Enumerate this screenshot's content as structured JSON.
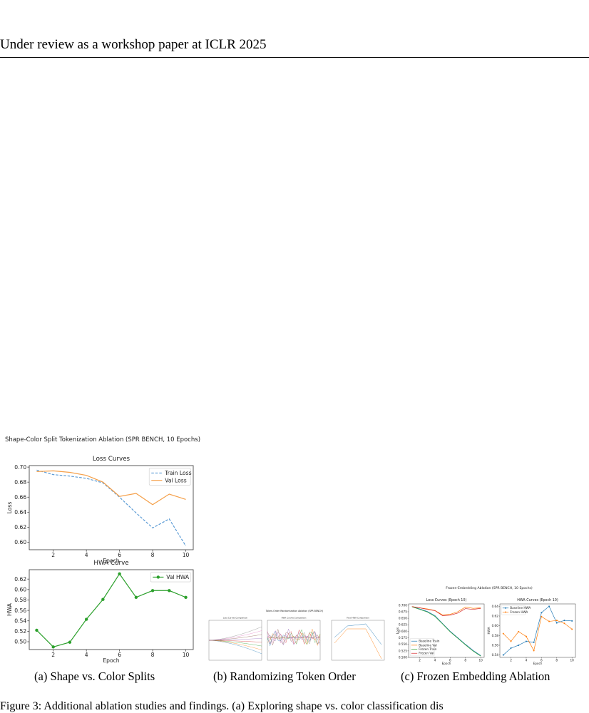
{
  "header": {
    "text": "Under review as a workshop paper at ICLR 2025"
  },
  "captions": {
    "a": "(a)  Shape vs. Color Splits",
    "b": "(b)  Randomizing Token Order",
    "c": "(c)  Frozen Embedding Ablation"
  },
  "footer": {
    "text": "Figure 3:  Additional ablation studies and findings. (a) Exploring shape vs. color classification dis"
  },
  "chart_data": [
    {
      "type": "line",
      "suptitle": "Shape-Color Split Tokenization Ablation (SPR BENCH, 10 Epochs)",
      "title": "Loss Curves",
      "xlabel": "Epoch",
      "ylabel": "Loss",
      "x": [
        1,
        2,
        3,
        4,
        5,
        6,
        7,
        8,
        9,
        10
      ],
      "xticks": [
        2,
        4,
        6,
        8,
        10
      ],
      "ylim": [
        0.59,
        0.702
      ],
      "yticks": [
        "0.60",
        "0.62",
        "0.64",
        "0.66",
        "0.68",
        "0.70"
      ],
      "legend": "top-right",
      "series": [
        {
          "name": "Train Loss",
          "color": "#5b9bd5",
          "dash": true,
          "values": [
            0.696,
            0.69,
            0.688,
            0.685,
            0.679,
            0.66,
            0.639,
            0.619,
            0.631,
            0.595
          ]
        },
        {
          "name": "Val Loss",
          "color": "#f5a04a",
          "dash": false,
          "values": [
            0.694,
            0.695,
            0.693,
            0.689,
            0.68,
            0.661,
            0.665,
            0.65,
            0.664,
            0.657
          ]
        }
      ]
    },
    {
      "type": "line",
      "title": "HWA Curve",
      "xlabel": "Epoch",
      "ylabel": "HWA",
      "x": [
        1,
        2,
        3,
        4,
        5,
        6,
        7,
        8,
        9,
        10
      ],
      "xticks": [
        2,
        4,
        6,
        8,
        10
      ],
      "ylim": [
        0.485,
        0.638
      ],
      "yticks": [
        "0.50",
        "0.52",
        "0.54",
        "0.56",
        "0.58",
        "0.60",
        "0.62"
      ],
      "legend": "top-right",
      "series": [
        {
          "name": "Val HWA",
          "color": "#2ca02c",
          "values": [
            0.522,
            0.49,
            0.499,
            0.543,
            0.581,
            0.63,
            0.585,
            0.598,
            0.598,
            0.585
          ]
        }
      ]
    },
    {
      "type": "line",
      "suptitle": "Token-Order Randomization Ablation (SPR BENCH)",
      "panels": [
        "Loss Curves Comparison",
        "HWA Curves Comparison",
        "Final HWA Comparison"
      ]
    },
    {
      "type": "line",
      "suptitle": "Frozen-Embedding Ablation (SPR BENCH, 10 Epochs)",
      "panels": [
        {
          "title": "Loss Curves (Epoch 10)",
          "xlabel": "Epoch",
          "ylabel": "Loss",
          "x": [
            1,
            2,
            3,
            4,
            5,
            6,
            7,
            8,
            9,
            10
          ],
          "xticks": [
            2,
            4,
            6,
            8,
            10
          ],
          "ylim": [
            0.5,
            0.705
          ],
          "yticks": [
            "0.500",
            "0.525",
            "0.550",
            "0.575",
            "0.600",
            "0.625",
            "0.650",
            "0.675",
            "0.700"
          ],
          "legend": "bottom-left",
          "series": [
            {
              "name": "Baseline Train",
              "color": "#1f77b4",
              "values": [
                0.695,
                0.686,
                0.676,
                0.66,
                0.63,
                0.6,
                0.575,
                0.55,
                0.527,
                0.507
              ]
            },
            {
              "name": "Baseline Val",
              "color": "#ff7f0e",
              "values": [
                0.695,
                0.69,
                0.686,
                0.68,
                0.663,
                0.665,
                0.675,
                0.693,
                0.688,
                0.69
              ]
            },
            {
              "name": "Frozen Train",
              "color": "#2ca02c",
              "values": [
                0.694,
                0.684,
                0.674,
                0.657,
                0.628,
                0.598,
                0.573,
                0.548,
                0.524,
                0.505
              ]
            },
            {
              "name": "Frozen Val",
              "color": "#d62728",
              "values": [
                0.695,
                0.69,
                0.684,
                0.679,
                0.66,
                0.662,
                0.67,
                0.687,
                0.684,
                0.688
              ]
            }
          ]
        },
        {
          "title": "HWA Curves (Epoch 10)",
          "xlabel": "Epoch",
          "ylabel": "HWA",
          "x": [
            1,
            2,
            3,
            4,
            5,
            6,
            7,
            8,
            9,
            10
          ],
          "xticks": [
            2,
            4,
            6,
            8,
            10
          ],
          "ylim": [
            0.535,
            0.645
          ],
          "yticks": [
            "0.54",
            "0.56",
            "0.58",
            "0.60",
            "0.62",
            "0.64"
          ],
          "legend": "top-left",
          "series": [
            {
              "name": "Baseline HWA",
              "color": "#1f77b4",
              "values": [
                0.54,
                0.554,
                0.56,
                0.568,
                0.566,
                0.627,
                0.64,
                0.606,
                0.611,
                0.61
              ]
            },
            {
              "name": "Frozen HWA",
              "color": "#ff7f0e",
              "values": [
                0.584,
                0.568,
                0.588,
                0.578,
                0.549,
                0.619,
                0.609,
                0.611,
                0.605,
                0.593
              ]
            }
          ]
        }
      ]
    }
  ]
}
